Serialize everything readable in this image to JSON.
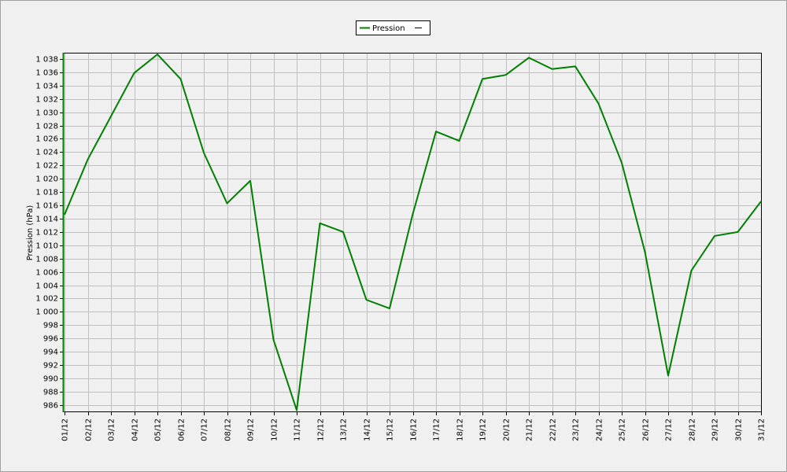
{
  "chart_data": {
    "type": "line",
    "y_label": "Pression (hPa)",
    "categories": [
      "01/12",
      "02/12",
      "03/12",
      "04/12",
      "05/12",
      "06/12",
      "07/12",
      "08/12",
      "09/12",
      "10/12",
      "11/12",
      "12/12",
      "13/12",
      "14/12",
      "15/12",
      "16/12",
      "17/12",
      "18/12",
      "19/12",
      "20/12",
      "21/12",
      "22/12",
      "23/12",
      "24/12",
      "25/12",
      "26/12",
      "27/12",
      "28/12",
      "29/12",
      "30/12",
      "31/12"
    ],
    "series": [
      {
        "name": "Pression",
        "color": "#008000",
        "values": [
          1014.6,
          1022.9,
          1029.4,
          1035.9,
          1038.7,
          1035.0,
          1023.9,
          1016.3,
          1019.7,
          995.8,
          985.2,
          1013.3,
          1012.0,
          1001.8,
          1000.5,
          1014.7,
          1027.1,
          1025.7,
          1035.0,
          1035.6,
          1038.2,
          1036.5,
          1036.9,
          1031.3,
          1022.4,
          1009.0,
          990.4,
          1006.2,
          1011.4,
          1012.0,
          1016.6
        ]
      }
    ],
    "ylim": [
      984.9,
      1038.95
    ],
    "yticks": [
      986,
      988,
      990,
      992,
      994,
      996,
      998,
      {
        "value": 1000,
        "label": "1 000"
      },
      {
        "value": 1002,
        "label": "1 002"
      },
      {
        "value": 1004,
        "label": "1 004"
      },
      {
        "value": 1006,
        "label": "1 006"
      },
      {
        "value": 1008,
        "label": "1 008"
      },
      {
        "value": 1010,
        "label": "1 010"
      },
      {
        "value": 1012,
        "label": "1 012"
      },
      {
        "value": 1014,
        "label": "1 014"
      },
      {
        "value": 1016,
        "label": "1 016"
      },
      {
        "value": 1018,
        "label": "1 018"
      },
      {
        "value": 1020,
        "label": "1 020"
      },
      {
        "value": 1022,
        "label": "1 022"
      },
      {
        "value": 1024,
        "label": "1 024"
      },
      {
        "value": 1026,
        "label": "1 026"
      },
      {
        "value": 1028,
        "label": "1 028"
      },
      {
        "value": 1030,
        "label": "1 030"
      },
      {
        "value": 1032,
        "label": "1 032"
      },
      {
        "value": 1034,
        "label": "1 034"
      },
      {
        "value": 1036,
        "label": "1 036"
      },
      {
        "value": 1038,
        "label": "1 038"
      }
    ],
    "grid": true
  }
}
